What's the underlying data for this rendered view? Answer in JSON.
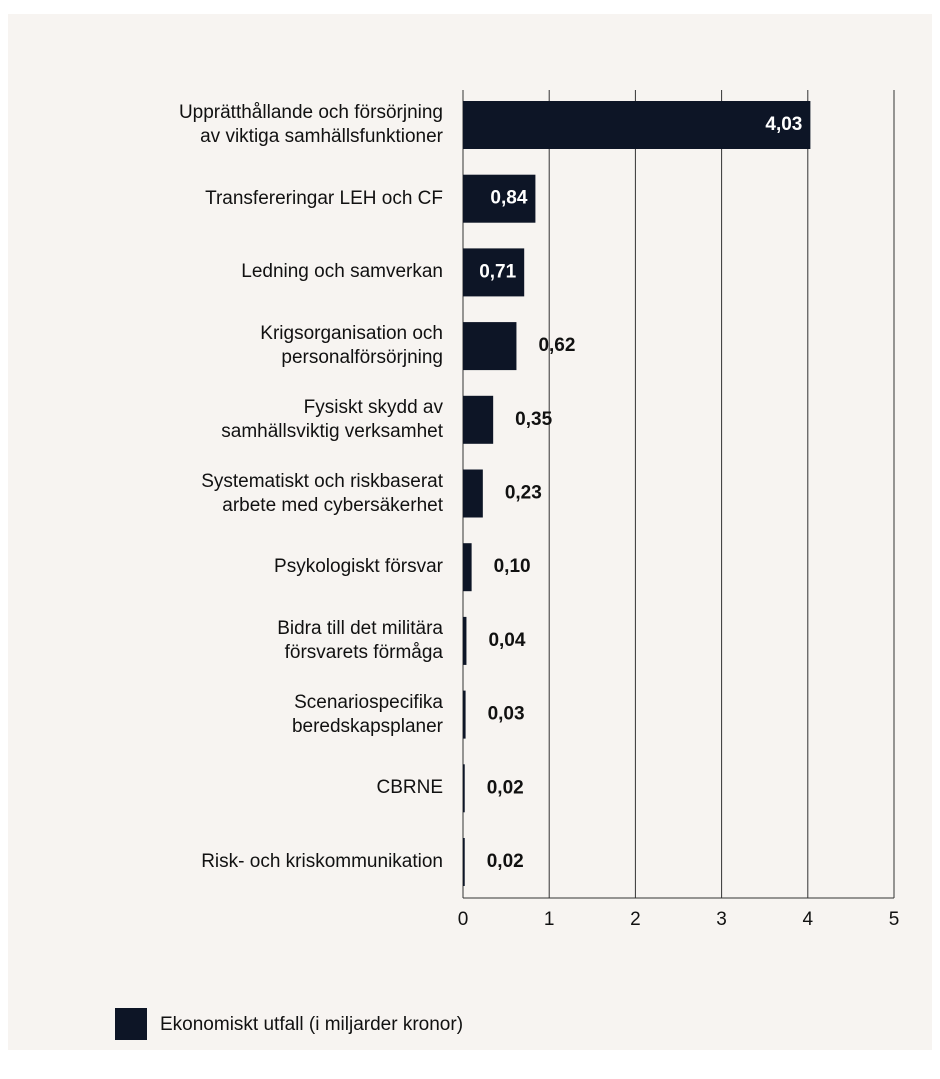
{
  "chart_data": {
    "type": "bar",
    "orientation": "horizontal",
    "categories": [
      "Upprätthållande och försörjning\nav viktiga samhällsfunktioner",
      "Transfereringar LEH och CF",
      "Ledning och samverkan",
      "Krigsorganisation och\npersonalförsörjning",
      "Fysiskt skydd av\nsamhällsviktig verksamhet",
      "Systematiskt och riskbaserat\narbete med cybersäkerhet",
      "Psykologiskt försvar",
      "Bidra till det militära\nförsvarets förmåga",
      "Scenariospecifika\nberedskapsplaner",
      "CBRNE",
      "Risk- och kriskommunikation"
    ],
    "series": [
      {
        "name": "Ekonomiskt utfall (i miljarder kronor)",
        "color": "#0d1526",
        "values": [
          4.03,
          0.84,
          0.71,
          0.62,
          0.35,
          0.23,
          0.1,
          0.04,
          0.03,
          0.02,
          0.02
        ],
        "value_labels": [
          "4,03",
          "0,84",
          "0,71",
          "0,62",
          "0,35",
          "0,23",
          "0,10",
          "0,04",
          "0,03",
          "0,02",
          "0,02"
        ]
      }
    ],
    "xlim": [
      0,
      5
    ],
    "xticks": [
      0,
      1,
      2,
      3,
      4,
      5
    ],
    "grid": true,
    "legend": "bottom-left"
  }
}
